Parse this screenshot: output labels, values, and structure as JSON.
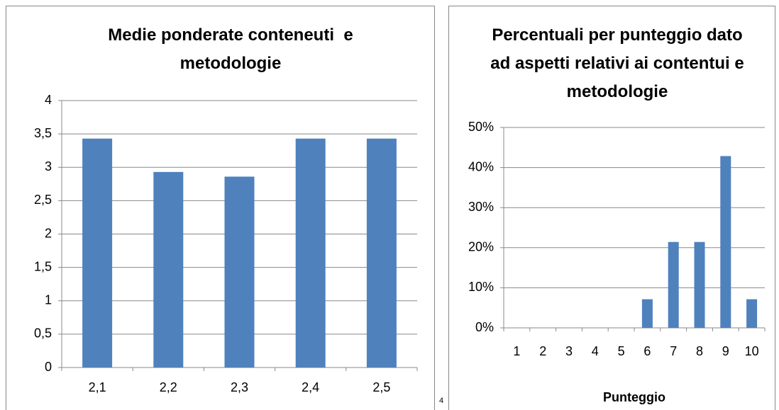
{
  "chart_data": [
    {
      "type": "bar",
      "title": "Medie ponderate conteneuti  e metodologie",
      "categories": [
        "2,1",
        "2,2",
        "2,3",
        "2,4",
        "2,5"
      ],
      "values": [
        3.43,
        2.93,
        2.86,
        3.43,
        3.43
      ],
      "color": "#4f81bd",
      "ylim": [
        0,
        4
      ],
      "yticks": [
        0,
        {
          "value": 0.5,
          "label": "0,5"
        },
        1,
        {
          "value": 1.5,
          "label": "1,5"
        },
        2,
        {
          "value": 2.5,
          "label": "2,5"
        },
        3,
        {
          "value": 3.5,
          "label": "3,5"
        },
        4
      ],
      "grid": true
    },
    {
      "type": "bar",
      "title": "Percentuali per punteggio dato ad aspetti relativi ai contentui e metodologie",
      "xlabel": "Punteggio",
      "categories": [
        "1",
        "2",
        "3",
        "4",
        "5",
        "6",
        "7",
        "8",
        "9",
        "10"
      ],
      "values": [
        0,
        0,
        0,
        0,
        0,
        7.14,
        21.43,
        21.43,
        42.86,
        7.14
      ],
      "color": "#4f81bd",
      "ylim": [
        0,
        50
      ],
      "yticks": [
        {
          "value": 0,
          "label": "0%"
        },
        {
          "value": 10,
          "label": "10%"
        },
        {
          "value": 20,
          "label": "20%"
        },
        {
          "value": 30,
          "label": "30%"
        },
        {
          "value": 40,
          "label": "40%"
        },
        {
          "value": 50,
          "label": "50%"
        }
      ],
      "grid": true
    }
  ],
  "page_number": "4"
}
